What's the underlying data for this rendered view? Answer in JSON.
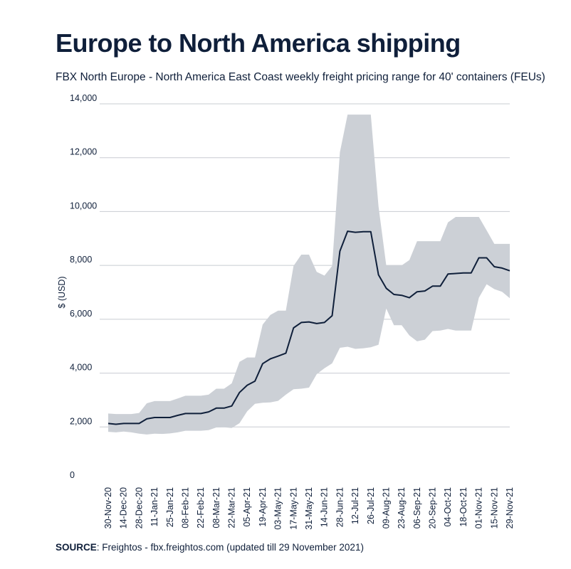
{
  "header": {
    "title": "Europe to North America shipping",
    "subtitle": "FBX North Europe - North America East Coast weekly freight pricing range for 40' containers (FEUs)"
  },
  "footer": {
    "source_label": "SOURCE",
    "source_text": ": Freightos - fbx.freightos.com (updated till 29 November 2021)"
  },
  "chart_data": {
    "type": "line",
    "ylabel": "$ (USD)",
    "ylim": [
      0,
      14000
    ],
    "yticks": [
      0,
      2000,
      4000,
      6000,
      8000,
      10000,
      12000,
      14000
    ],
    "ytick_labels": [
      "0",
      "2,000",
      "4,000",
      "6,000",
      "8,000",
      "10,000",
      "12,000",
      "14,000"
    ],
    "x_tick_labels": [
      "30-Nov-20",
      "14-Dec-20",
      "28-Dec-20",
      "11-Jan-21",
      "25-Jan-21",
      "08-Feb-21",
      "22-Feb-21",
      "08-Mar-21",
      "22-Mar-21",
      "05-Apr-21",
      "19-Apr-21",
      "03-May-21",
      "17-May-21",
      "31-May-21",
      "14-Jun-21",
      "28-Jun-21",
      "12-Jul-21",
      "26-Jul-21",
      "09-Aug-21",
      "23-Aug-21",
      "06-Sep-21",
      "20-Sep-21",
      "04-Oct-21",
      "18-Oct-21",
      "01-Nov-21",
      "15-Nov-21",
      "29-Nov-21"
    ],
    "grid": true,
    "colors": {
      "range": "#ccd0d6",
      "line": "#0f1f3a",
      "grid": "#c8ccd2"
    },
    "series": [
      {
        "role": "line",
        "values": [
          2130,
          2100,
          2130,
          2130,
          2130,
          2300,
          2350,
          2350,
          2350,
          2430,
          2500,
          2500,
          2500,
          2560,
          2700,
          2700,
          2780,
          3280,
          3550,
          3700,
          4350,
          4530,
          4630,
          4740,
          5680,
          5880,
          5900,
          5840,
          5880,
          6130,
          8530,
          9270,
          9230,
          9250,
          9250,
          7650,
          7150,
          6920,
          6890,
          6800,
          7020,
          7050,
          7230,
          7230,
          7680,
          7700,
          7720,
          7720,
          8280,
          8280,
          7950,
          7900,
          7800
        ]
      },
      {
        "role": "range_high",
        "values": [
          2500,
          2480,
          2480,
          2480,
          2520,
          2880,
          2960,
          2960,
          2960,
          3060,
          3160,
          3160,
          3160,
          3200,
          3420,
          3420,
          3620,
          4420,
          4580,
          4580,
          5800,
          6160,
          6320,
          6320,
          7980,
          8400,
          8400,
          7760,
          7620,
          7980,
          12200,
          13600,
          13600,
          13600,
          13600,
          10200,
          8000,
          8000,
          8000,
          8200,
          8900,
          8900,
          8900,
          8900,
          9600,
          9800,
          9800,
          9800,
          9800,
          9300,
          8800,
          8800,
          8800
        ]
      },
      {
        "role": "range_low",
        "values": [
          1820,
          1800,
          1830,
          1800,
          1750,
          1720,
          1750,
          1740,
          1760,
          1800,
          1860,
          1860,
          1860,
          1880,
          1980,
          1990,
          1960,
          2140,
          2580,
          2860,
          2900,
          2910,
          2970,
          3200,
          3400,
          3420,
          3460,
          3960,
          4180,
          4360,
          4940,
          4980,
          4900,
          4920,
          4960,
          5050,
          6400,
          5780,
          5780,
          5400,
          5180,
          5240,
          5560,
          5580,
          5640,
          5580,
          5580,
          5580,
          6800,
          7300,
          7120,
          7020,
          6780
        ]
      }
    ]
  }
}
